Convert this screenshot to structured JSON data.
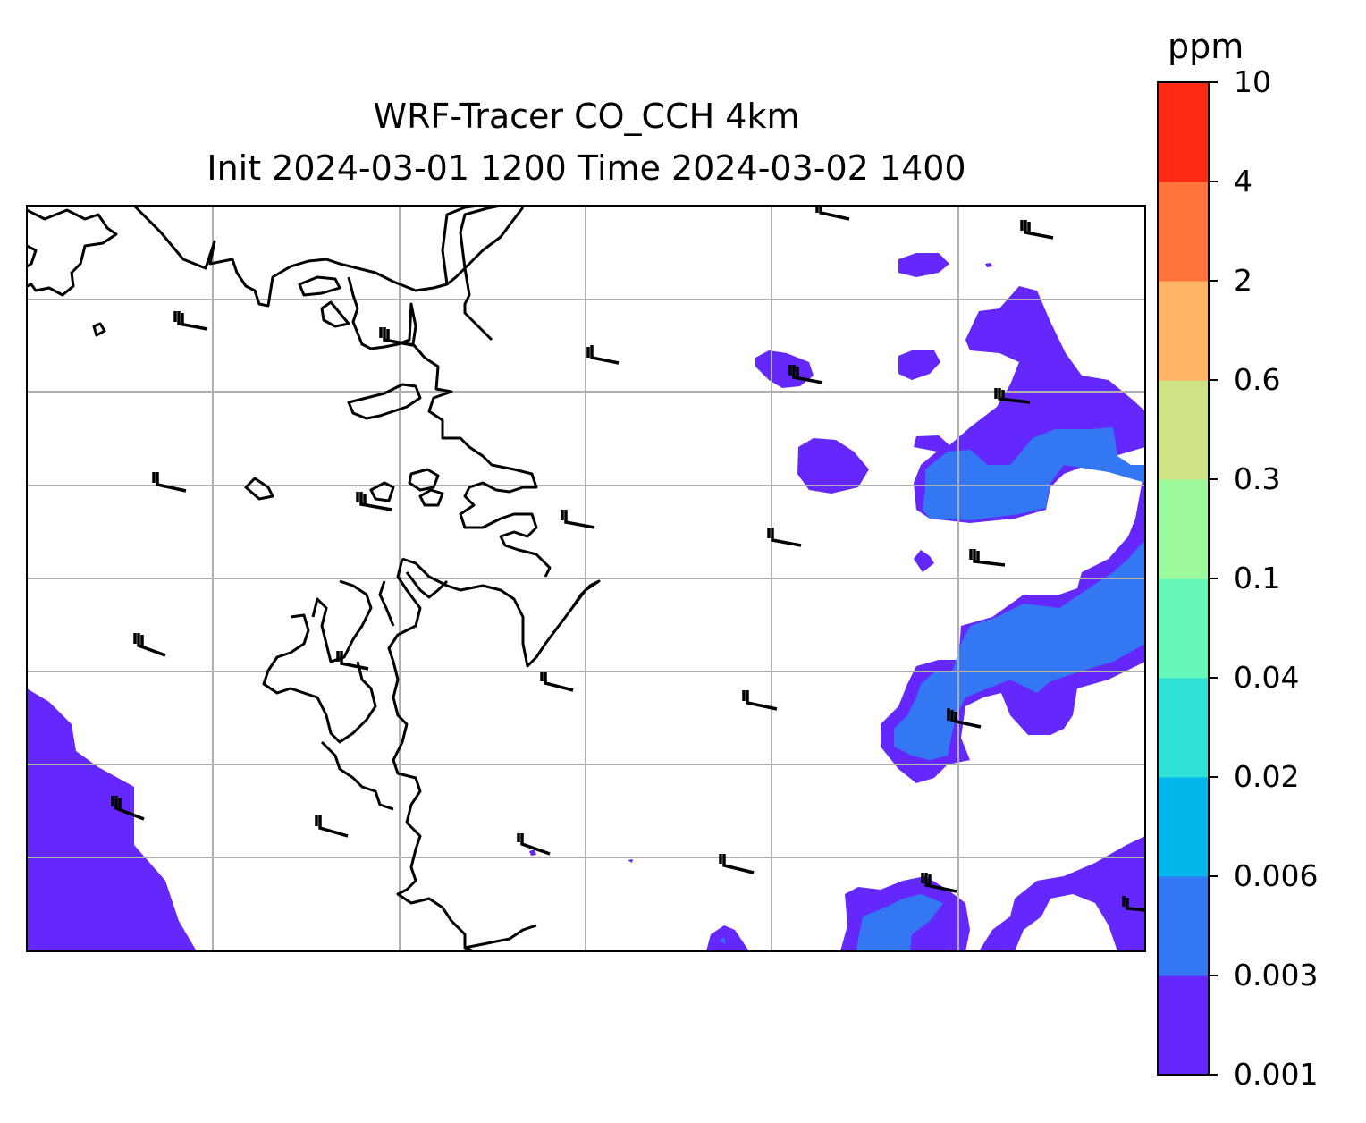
{
  "title": {
    "line1": "WRF-Tracer CO_CCH 4km",
    "line2": "Init 2024-03-01 1200 Time 2024-03-02 1400"
  },
  "colorbar": {
    "unit": "ppm",
    "ticks": [
      "0.001",
      "0.003",
      "0.006",
      "0.02",
      "0.04",
      "0.1",
      "0.3",
      "0.6",
      "2",
      "4",
      "10"
    ],
    "colors": [
      "#6428fc",
      "#3477f2",
      "#02b6ec",
      "#30e0d6",
      "#66f8b9",
      "#9cfa9c",
      "#cfe285",
      "#ffb365",
      "#ff743d",
      "#ff2a14"
    ]
  },
  "map": {
    "gridlines": true,
    "coastline_color": "#000000",
    "gridline_color": "#b0b0b0"
  }
}
